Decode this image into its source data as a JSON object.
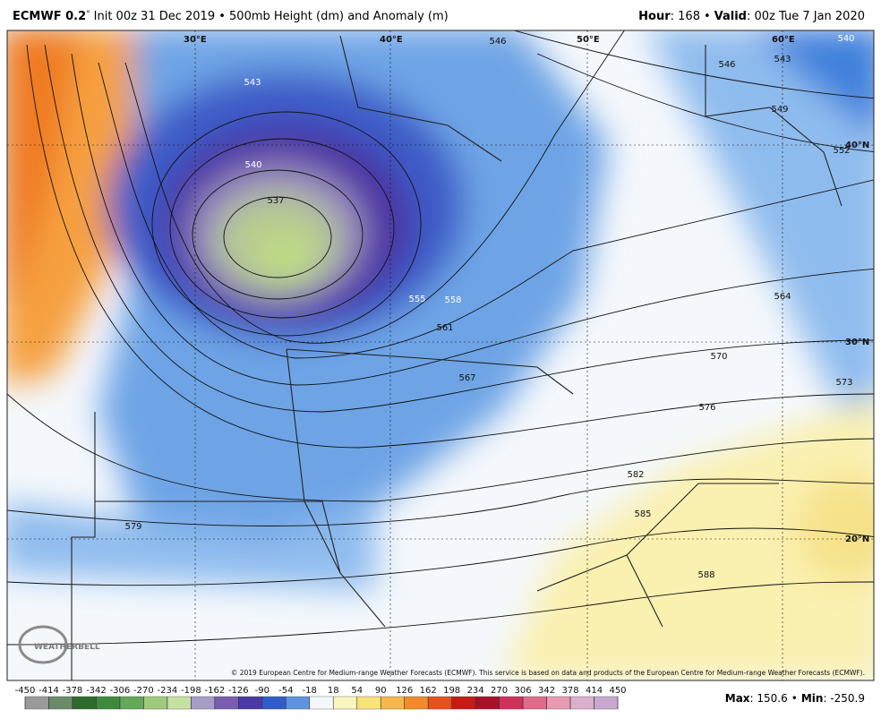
{
  "header": {
    "model": "ECMWF 0.2",
    "degree": "°",
    "init": "Init 00z 31 Dec 2019 • 500mb Height (dm) and Anomaly (m)",
    "hour_label": "Hour",
    "hour": ": 168",
    "separator": "•",
    "valid_label": "Valid",
    "valid": ": 00z Tue 7 Jan 2020"
  },
  "map": {
    "longitudes": [
      "30°E",
      "40°E",
      "50°E",
      "60°E"
    ],
    "latitudes": [
      "40°N",
      "30°N",
      "20°N"
    ],
    "contour_labels": [
      "543",
      "540",
      "537",
      "555",
      "558",
      "561",
      "567",
      "546",
      "546",
      "543",
      "549",
      "552",
      "564",
      "570",
      "573",
      "576",
      "579",
      "582",
      "585",
      "588",
      "540"
    ],
    "copyright": "© 2019 European Centre for Medium-range Weather Forecasts (ECMWF). This service is based on data and products of the European Centre for Medium-range Weather Forecasts (ECMWF).",
    "logo": "WEATHERBELL"
  },
  "colorbar": {
    "labels": [
      -450,
      -414,
      -378,
      -342,
      -306,
      -270,
      -234,
      -198,
      -162,
      -126,
      -90,
      -54,
      -18,
      18,
      54,
      90,
      126,
      162,
      198,
      234,
      270,
      306,
      342,
      378,
      414,
      450
    ],
    "colors": [
      "#9a9a9a",
      "#6a8a6a",
      "#2d6b2d",
      "#3d8a3d",
      "#64a85a",
      "#9ccb7c",
      "#c6e0a0",
      "#a89cc8",
      "#7a5db0",
      "#4b3aa5",
      "#2f5cc8",
      "#5f93e0",
      "#f4f8fc",
      "#fbf5c0",
      "#f8e27a",
      "#f5b84a",
      "#f08a2a",
      "#e8501c",
      "#c81a14",
      "#a8102a",
      "#d0305a",
      "#e06a8a",
      "#e89ab0",
      "#dcb0cc",
      "#c8a8d0"
    ]
  },
  "footer": {
    "max_label": "Max",
    "max": ": 150.6",
    "separator": "•",
    "min_label": "Min",
    "min": ": -250.9"
  }
}
